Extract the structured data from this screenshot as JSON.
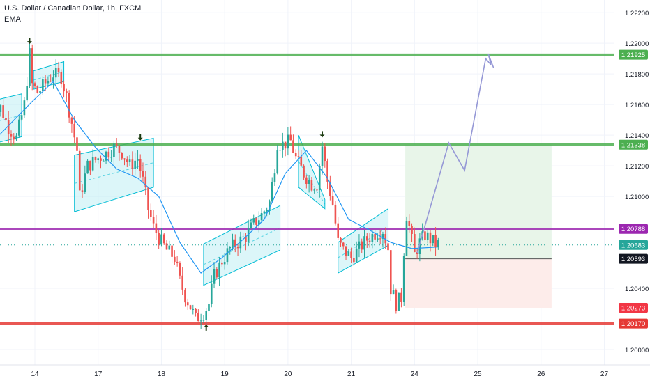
{
  "header": {
    "symbol_title": "U.S. Dollar / Canadian Dollar, 1h, FXCM",
    "indicator": "EMA"
  },
  "colors": {
    "background": "#ffffff",
    "grid": "#f0f3fa",
    "bull": "#26a69a",
    "bear": "#ef5350",
    "ema": "#2196f3",
    "channel_fill": "#b2ebf2",
    "channel_stroke": "#00bcd4",
    "resistance": "#4caf50",
    "support": "#e53935",
    "pivot": "#9c27b0",
    "projection": "#9598d6",
    "target_zone": "#e8f5e9",
    "stop_zone": "#fdecea",
    "axis_text": "#131722"
  },
  "chart_data": {
    "type": "candlestick",
    "symbol": "USDCAD",
    "timeframe": "1h",
    "indicator": "EMA",
    "y_range": [
      1.199,
      1.2221
    ],
    "x_ticks": [
      {
        "label": "14",
        "t": 13
      },
      {
        "label": "17",
        "t": 37
      },
      {
        "label": "18",
        "t": 61
      },
      {
        "label": "19",
        "t": 85
      },
      {
        "label": "20",
        "t": 109
      },
      {
        "label": "21",
        "t": 133
      },
      {
        "label": "24",
        "t": 157
      },
      {
        "label": "25",
        "t": 181
      },
      {
        "label": "26",
        "t": 205
      },
      {
        "label": "27",
        "t": 229
      }
    ],
    "y_ticks": [
      1.2,
      1.204,
      1.21,
      1.212,
      1.214,
      1.216,
      1.218,
      1.22,
      1.222
    ],
    "horizontal_levels": [
      {
        "name": "resistance-high",
        "value": 1.21925,
        "label": "1.21925",
        "color": "#4caf50"
      },
      {
        "name": "resistance-mid",
        "value": 1.21338,
        "label": "1.21338",
        "color": "#4caf50"
      },
      {
        "name": "pivot",
        "value": 1.20788,
        "label": "1.20788",
        "color": "#9c27b0"
      },
      {
        "name": "support",
        "value": 1.2017,
        "label": "1.20170",
        "color": "#e53935"
      }
    ],
    "price_badges": [
      {
        "name": "current-price",
        "value": 1.20683,
        "label": "1.20683",
        "color": "#26a69a"
      },
      {
        "name": "entry-price",
        "value": 1.20593,
        "label": "1.20593",
        "color": "#131722"
      },
      {
        "name": "stop-price",
        "value": 1.20273,
        "label": "1.20273",
        "color": "#f23645"
      }
    ],
    "position": {
      "t_start": 153.5,
      "t_end": 209,
      "entry": 1.20593,
      "target": 1.21338,
      "stop": 1.20273
    },
    "projection_path": [
      [
        158,
        1.2063
      ],
      [
        170,
        1.2135
      ],
      [
        176,
        1.2117
      ],
      [
        184,
        1.219
      ],
      [
        186,
        1.2186
      ],
      [
        185,
        1.2193
      ],
      [
        187,
        1.2184
      ]
    ],
    "channels": [
      {
        "t1": -4,
        "p1a": 1.2134,
        "p1b": 1.2162,
        "t2": 8,
        "p2a": 1.2139,
        "p2b": 1.2167
      },
      {
        "t1": 12.5,
        "p1a": 1.217,
        "p1b": 1.2182,
        "t2": 24,
        "p2a": 1.2175,
        "p2b": 1.2188
      },
      {
        "t1": 28,
        "p1a": 1.209,
        "p1b": 1.2127,
        "t2": 58,
        "p2a": 1.2106,
        "p2b": 1.2138
      },
      {
        "t1": 77,
        "p1a": 1.2042,
        "p1b": 1.2069,
        "t2": 106,
        "p2a": 1.2065,
        "p2b": 1.2094
      },
      {
        "t1": 113,
        "p1a": 1.2106,
        "p1b": 1.214,
        "t2": 123,
        "p2a": 1.2092,
        "p2b": 1.2098
      },
      {
        "t1": 128,
        "p1a": 1.205,
        "p1b": 1.207,
        "t2": 147,
        "p2a": 1.2068,
        "p2b": 1.2092
      }
    ],
    "markers": [
      {
        "t": 11,
        "price": 1.22,
        "dir": "down"
      },
      {
        "t": 53,
        "price": 1.2137,
        "dir": "down"
      },
      {
        "t": 122,
        "price": 1.2139,
        "dir": "down"
      },
      {
        "t": 78,
        "price": 1.2016,
        "dir": "up"
      }
    ],
    "ema_points": [
      [
        -4,
        1.2134
      ],
      [
        4,
        1.2148
      ],
      [
        12,
        1.2162
      ],
      [
        20,
        1.2175
      ],
      [
        28,
        1.215
      ],
      [
        36,
        1.2132
      ],
      [
        44,
        1.2118
      ],
      [
        52,
        1.2112
      ],
      [
        60,
        1.21
      ],
      [
        68,
        1.207
      ],
      [
        76,
        1.205
      ],
      [
        84,
        1.206
      ],
      [
        92,
        1.2072
      ],
      [
        100,
        1.2085
      ],
      [
        108,
        1.2115
      ],
      [
        116,
        1.213
      ],
      [
        124,
        1.2112
      ],
      [
        132,
        1.2085
      ],
      [
        140,
        1.2078
      ],
      [
        148,
        1.207
      ],
      [
        156,
        1.2066
      ],
      [
        166,
        1.2067
      ]
    ],
    "anchors": [
      [
        -4,
        1.215
      ],
      [
        0,
        1.2158
      ],
      [
        3,
        1.2145
      ],
      [
        6,
        1.2138
      ],
      [
        9,
        1.216
      ],
      [
        11,
        1.2193
      ],
      [
        12,
        1.2173
      ],
      [
        14,
        1.2168
      ],
      [
        17,
        1.2174
      ],
      [
        20,
        1.218
      ],
      [
        23,
        1.2178
      ],
      [
        25,
        1.2165
      ],
      [
        27,
        1.2148
      ],
      [
        29,
        1.213
      ],
      [
        30,
        1.21
      ],
      [
        33,
        1.212
      ],
      [
        37,
        1.2125
      ],
      [
        40,
        1.2128
      ],
      [
        43,
        1.2132
      ],
      [
        46,
        1.2129
      ],
      [
        49,
        1.212
      ],
      [
        52,
        1.2125
      ],
      [
        54,
        1.211
      ],
      [
        56,
        1.2092
      ],
      [
        58,
        1.208
      ],
      [
        60,
        1.2073
      ],
      [
        63,
        1.2065
      ],
      [
        66,
        1.206
      ],
      [
        68,
        1.2045
      ],
      [
        70,
        1.2035
      ],
      [
        72,
        1.2028
      ],
      [
        74,
        1.202
      ],
      [
        77,
        1.2024
      ],
      [
        79,
        1.203
      ],
      [
        81,
        1.2048
      ],
      [
        84,
        1.2058
      ],
      [
        87,
        1.2066
      ],
      [
        90,
        1.207
      ],
      [
        93,
        1.2074
      ],
      [
        96,
        1.2082
      ],
      [
        99,
        1.2088
      ],
      [
        102,
        1.2096
      ],
      [
        104,
        1.212
      ],
      [
        105,
        1.2135
      ],
      [
        107,
        1.2134
      ],
      [
        110,
        1.2136
      ],
      [
        112,
        1.2125
      ],
      [
        115,
        1.2115
      ],
      [
        118,
        1.2108
      ],
      [
        120,
        1.2108
      ],
      [
        122,
        1.2133
      ],
      [
        124,
        1.211
      ],
      [
        126,
        1.2095
      ],
      [
        128,
        1.207
      ],
      [
        130,
        1.2065
      ],
      [
        133,
        1.206
      ],
      [
        136,
        1.2066
      ],
      [
        139,
        1.2072
      ],
      [
        142,
        1.2076
      ],
      [
        145,
        1.2078
      ],
      [
        147,
        1.2066
      ],
      [
        148,
        1.204
      ],
      [
        150,
        1.203
      ],
      [
        152,
        1.2034
      ],
      [
        153,
        1.2065
      ],
      [
        154,
        1.2088
      ],
      [
        155,
        1.208
      ],
      [
        157,
        1.2062
      ],
      [
        159,
        1.207
      ],
      [
        161,
        1.2075
      ],
      [
        163,
        1.2072
      ],
      [
        165,
        1.2069
      ],
      [
        166,
        1.2069
      ]
    ],
    "last_t": 166
  }
}
